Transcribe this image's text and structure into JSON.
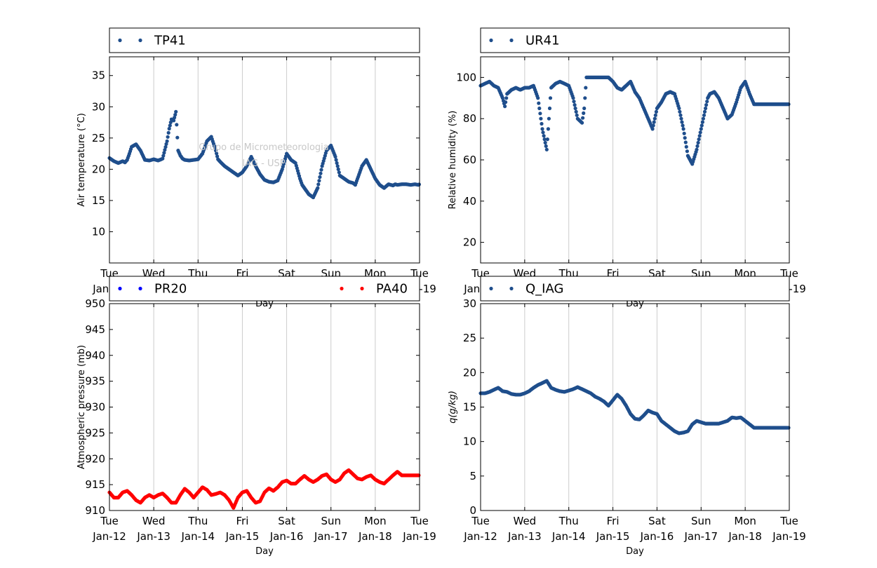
{
  "watermark": {
    "line1": "Grupo de Micrometeorologia",
    "line2": "IAG - USP"
  },
  "colors": {
    "dark_blue": "#1f4e8c",
    "blue": "#0000ff",
    "red": "#ff0000",
    "grid": "#cccccc"
  },
  "x_axis": {
    "xlabel": "Day",
    "ticks": [
      {
        "day": "Tue",
        "date": "Jan-12"
      },
      {
        "day": "Wed",
        "date": "Jan-13"
      },
      {
        "day": "Thu",
        "date": "Jan-14"
      },
      {
        "day": "Fri",
        "date": "Jan-15"
      },
      {
        "day": "Sat",
        "date": "Jan-16"
      },
      {
        "day": "Sun",
        "date": "Jan-17"
      },
      {
        "day": "Mon",
        "date": "Jan-18"
      },
      {
        "day": "Tue",
        "date": "Jan-19"
      }
    ]
  },
  "chart_data": [
    {
      "type": "scatter",
      "ylabel": "Air temperature (°C)",
      "ylim": [
        5,
        38
      ],
      "yticks": [
        10,
        15,
        20,
        25,
        30,
        35
      ],
      "legend": [
        {
          "name": "TP41",
          "color": "#1f4e8c"
        }
      ],
      "series": [
        {
          "name": "TP41",
          "color": "#1f4e8c",
          "x": [
            0,
            0.1,
            0.2,
            0.3,
            0.35,
            0.4,
            0.45,
            0.5,
            0.6,
            0.7,
            0.8,
            0.9,
            1.0,
            1.1,
            1.2,
            1.3,
            1.35,
            1.4,
            1.45,
            1.5,
            1.55,
            1.6,
            1.65,
            1.7,
            1.8,
            1.9,
            2.0,
            2.1,
            2.2,
            2.3,
            2.4,
            2.45,
            2.5,
            2.6,
            2.7,
            2.8,
            2.9,
            3.0,
            3.1,
            3.2,
            3.3,
            3.4,
            3.5,
            3.6,
            3.7,
            3.8,
            3.9,
            4.0,
            4.1,
            4.2,
            4.3,
            4.35,
            4.4,
            4.45,
            4.5,
            4.6,
            4.7,
            4.8,
            4.9,
            5.0,
            5.1,
            5.15,
            5.2,
            5.3,
            5.4,
            5.5,
            5.55,
            5.6,
            5.7,
            5.8,
            5.9,
            6.0,
            6.1,
            6.2,
            6.3,
            6.4,
            6.45,
            6.5,
            6.6,
            6.7,
            6.8,
            6.9,
            6.97,
            7.0
          ],
          "y": [
            21.8,
            21.3,
            21.0,
            21.3,
            21.1,
            21.5,
            22.5,
            23.6,
            24.0,
            23.0,
            21.5,
            21.4,
            21.6,
            21.4,
            21.7,
            24.5,
            26.5,
            28.0,
            27.8,
            29.2,
            23.0,
            22.2,
            21.7,
            21.5,
            21.4,
            21.5,
            21.6,
            22.5,
            24.5,
            25.2,
            23.0,
            21.6,
            21.2,
            20.5,
            20.0,
            19.5,
            19.0,
            19.5,
            20.5,
            22.0,
            20.5,
            19.2,
            18.3,
            18.0,
            17.9,
            18.2,
            20.0,
            22.5,
            21.5,
            21.0,
            18.5,
            17.5,
            17.0,
            16.5,
            16.0,
            15.5,
            17.0,
            20.5,
            23.0,
            23.8,
            22.0,
            20.5,
            19.0,
            18.5,
            18.0,
            17.8,
            17.5,
            18.5,
            20.5,
            21.5,
            20.0,
            18.5,
            17.5,
            17.0,
            17.6,
            17.4,
            17.6,
            17.5,
            17.6,
            17.6,
            17.5,
            17.6,
            17.5,
            17.6
          ]
        }
      ]
    },
    {
      "type": "scatter",
      "ylabel": "Relative humidity (%)",
      "ylim": [
        10,
        110
      ],
      "yticks": [
        20,
        40,
        60,
        80,
        100
      ],
      "legend": [
        {
          "name": "UR41",
          "color": "#1f4e8c"
        }
      ],
      "series": [
        {
          "name": "UR41",
          "color": "#1f4e8c",
          "x": [
            0,
            0.1,
            0.2,
            0.3,
            0.4,
            0.5,
            0.55,
            0.6,
            0.7,
            0.8,
            0.9,
            1.0,
            1.1,
            1.2,
            1.3,
            1.4,
            1.45,
            1.5,
            1.55,
            1.6,
            1.7,
            1.8,
            1.9,
            2.0,
            2.1,
            2.2,
            2.3,
            2.35,
            2.4,
            2.5,
            2.6,
            2.7,
            2.8,
            2.9,
            3.0,
            3.1,
            3.2,
            3.3,
            3.4,
            3.5,
            3.6,
            3.7,
            3.8,
            3.9,
            4.0,
            4.1,
            4.2,
            4.3,
            4.4,
            4.5,
            4.6,
            4.7,
            4.8,
            4.9,
            5.0,
            5.1,
            5.15,
            5.2,
            5.3,
            5.4,
            5.5,
            5.6,
            5.7,
            5.8,
            5.9,
            6.0,
            6.1,
            6.2,
            6.3,
            6.4,
            6.5,
            6.6,
            6.7,
            6.8,
            6.9,
            7.0
          ],
          "y": [
            96,
            97,
            98,
            96,
            95,
            90,
            86,
            92,
            94,
            95,
            94,
            95,
            95,
            96,
            90,
            75,
            70,
            65,
            80,
            95,
            97,
            98,
            97,
            96,
            90,
            80,
            78,
            85,
            100,
            100,
            100,
            100,
            100,
            100,
            98,
            95,
            94,
            96,
            98,
            93,
            90,
            85,
            80,
            75,
            85,
            88,
            92,
            93,
            92,
            85,
            75,
            62,
            58,
            65,
            75,
            85,
            90,
            92,
            93,
            90,
            85,
            80,
            82,
            88,
            95,
            98,
            92,
            87,
            87,
            87,
            87,
            87,
            87,
            87,
            87,
            87
          ]
        }
      ]
    },
    {
      "type": "scatter",
      "ylabel": "Atmospheric pressure (mb)",
      "ylim": [
        910,
        950
      ],
      "yticks": [
        910,
        915,
        920,
        925,
        930,
        935,
        940,
        945,
        950
      ],
      "legend": [
        {
          "name": "PR20",
          "color": "#0000ff"
        },
        {
          "name": "PA40",
          "color": "#ff0000"
        }
      ],
      "series": [
        {
          "name": "PA40",
          "color": "#ff0000",
          "x": [
            0,
            0.1,
            0.2,
            0.3,
            0.4,
            0.5,
            0.6,
            0.7,
            0.8,
            0.9,
            1.0,
            1.1,
            1.2,
            1.3,
            1.4,
            1.5,
            1.6,
            1.7,
            1.8,
            1.9,
            2.0,
            2.1,
            2.2,
            2.3,
            2.4,
            2.5,
            2.6,
            2.7,
            2.8,
            2.9,
            3.0,
            3.1,
            3.2,
            3.3,
            3.4,
            3.5,
            3.6,
            3.7,
            3.8,
            3.9,
            4.0,
            4.1,
            4.2,
            4.3,
            4.4,
            4.5,
            4.6,
            4.7,
            4.8,
            4.9,
            5.0,
            5.1,
            5.2,
            5.3,
            5.4,
            5.5,
            5.6,
            5.7,
            5.8,
            5.9,
            6.0,
            6.1,
            6.2,
            6.3,
            6.4,
            6.5,
            6.6,
            6.7,
            6.8,
            6.9,
            7.0
          ],
          "y": [
            913.5,
            912.5,
            912.5,
            913.5,
            913.8,
            913.0,
            912.0,
            911.5,
            912.5,
            913.0,
            912.5,
            913.0,
            913.3,
            912.5,
            911.5,
            911.5,
            913.0,
            914.2,
            913.5,
            912.5,
            913.5,
            914.5,
            914.0,
            913.0,
            913.2,
            913.5,
            913.0,
            912.0,
            910.5,
            912.5,
            913.5,
            913.8,
            912.5,
            911.5,
            911.8,
            913.5,
            914.3,
            913.8,
            914.5,
            915.5,
            915.8,
            915.2,
            915.2,
            916.0,
            916.7,
            916.0,
            915.5,
            916.0,
            916.7,
            917.0,
            916.0,
            915.5,
            916.0,
            917.2,
            917.8,
            917.0,
            916.2,
            916.0,
            916.5,
            916.8,
            916.0,
            915.5,
            915.2,
            916.0,
            916.8,
            917.5,
            916.8,
            916.8,
            916.8,
            916.8,
            916.8
          ]
        }
      ]
    },
    {
      "type": "scatter",
      "ylabel": "q(g/kg)",
      "ylim": [
        0,
        30
      ],
      "yticks": [
        0,
        5,
        10,
        15,
        20,
        25,
        30
      ],
      "legend": [
        {
          "name": "Q_IAG",
          "color": "#1f4e8c"
        }
      ],
      "series": [
        {
          "name": "Q_IAG",
          "color": "#1f4e8c",
          "x": [
            0,
            0.1,
            0.2,
            0.3,
            0.4,
            0.5,
            0.6,
            0.7,
            0.8,
            0.9,
            1.0,
            1.1,
            1.2,
            1.3,
            1.4,
            1.5,
            1.6,
            1.7,
            1.8,
            1.9,
            2.0,
            2.1,
            2.2,
            2.3,
            2.4,
            2.5,
            2.6,
            2.7,
            2.8,
            2.9,
            3.0,
            3.1,
            3.2,
            3.3,
            3.4,
            3.5,
            3.6,
            3.7,
            3.8,
            3.9,
            4.0,
            4.1,
            4.2,
            4.3,
            4.4,
            4.5,
            4.6,
            4.7,
            4.8,
            4.9,
            5.0,
            5.1,
            5.2,
            5.3,
            5.4,
            5.5,
            5.6,
            5.7,
            5.8,
            5.9,
            6.0,
            6.1,
            6.2,
            6.3,
            6.4,
            6.5,
            6.6,
            6.7,
            6.8,
            6.9,
            7.0
          ],
          "y": [
            17.0,
            17.0,
            17.2,
            17.5,
            17.8,
            17.3,
            17.2,
            16.9,
            16.8,
            16.8,
            17.0,
            17.3,
            17.8,
            18.2,
            18.5,
            18.8,
            17.8,
            17.5,
            17.3,
            17.2,
            17.4,
            17.6,
            17.9,
            17.6,
            17.3,
            17.0,
            16.5,
            16.2,
            15.8,
            15.2,
            16.0,
            16.8,
            16.2,
            15.2,
            14.0,
            13.3,
            13.2,
            13.8,
            14.5,
            14.2,
            14.0,
            13.0,
            12.5,
            12.0,
            11.5,
            11.2,
            11.3,
            11.5,
            12.5,
            13.0,
            12.8,
            12.6,
            12.6,
            12.6,
            12.6,
            12.8,
            13.0,
            13.5,
            13.4,
            13.5,
            13.0,
            12.5,
            12.0,
            12.0,
            12.0,
            12.0,
            12.0,
            12.0,
            12.0,
            12.0,
            12.0
          ]
        }
      ]
    }
  ]
}
